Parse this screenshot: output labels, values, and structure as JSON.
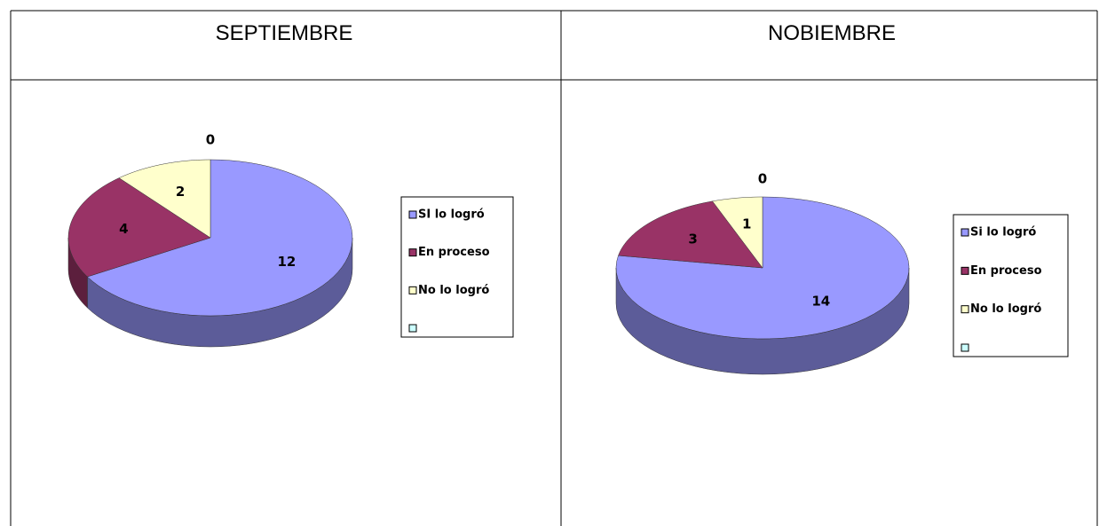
{
  "table": {
    "headers": [
      "SEPTIEMBRE",
      "NOBIEMBRE"
    ]
  },
  "chart_data": [
    {
      "type": "pie",
      "categories": [
        "SI lo logró",
        "En proceso",
        "No lo logró",
        null
      ],
      "values": [
        12,
        4,
        2,
        0
      ],
      "colors": [
        "#9999ff",
        "#993366",
        "#ffffcc",
        "#ccffff"
      ],
      "legend": "right"
    },
    {
      "type": "pie",
      "categories": [
        "Si lo logró",
        "En proceso",
        "No lo logró",
        null
      ],
      "values": [
        14,
        3,
        1,
        0
      ],
      "colors": [
        "#9999ff",
        "#993366",
        "#ffffcc",
        "#ccffff"
      ],
      "legend": "right"
    }
  ]
}
